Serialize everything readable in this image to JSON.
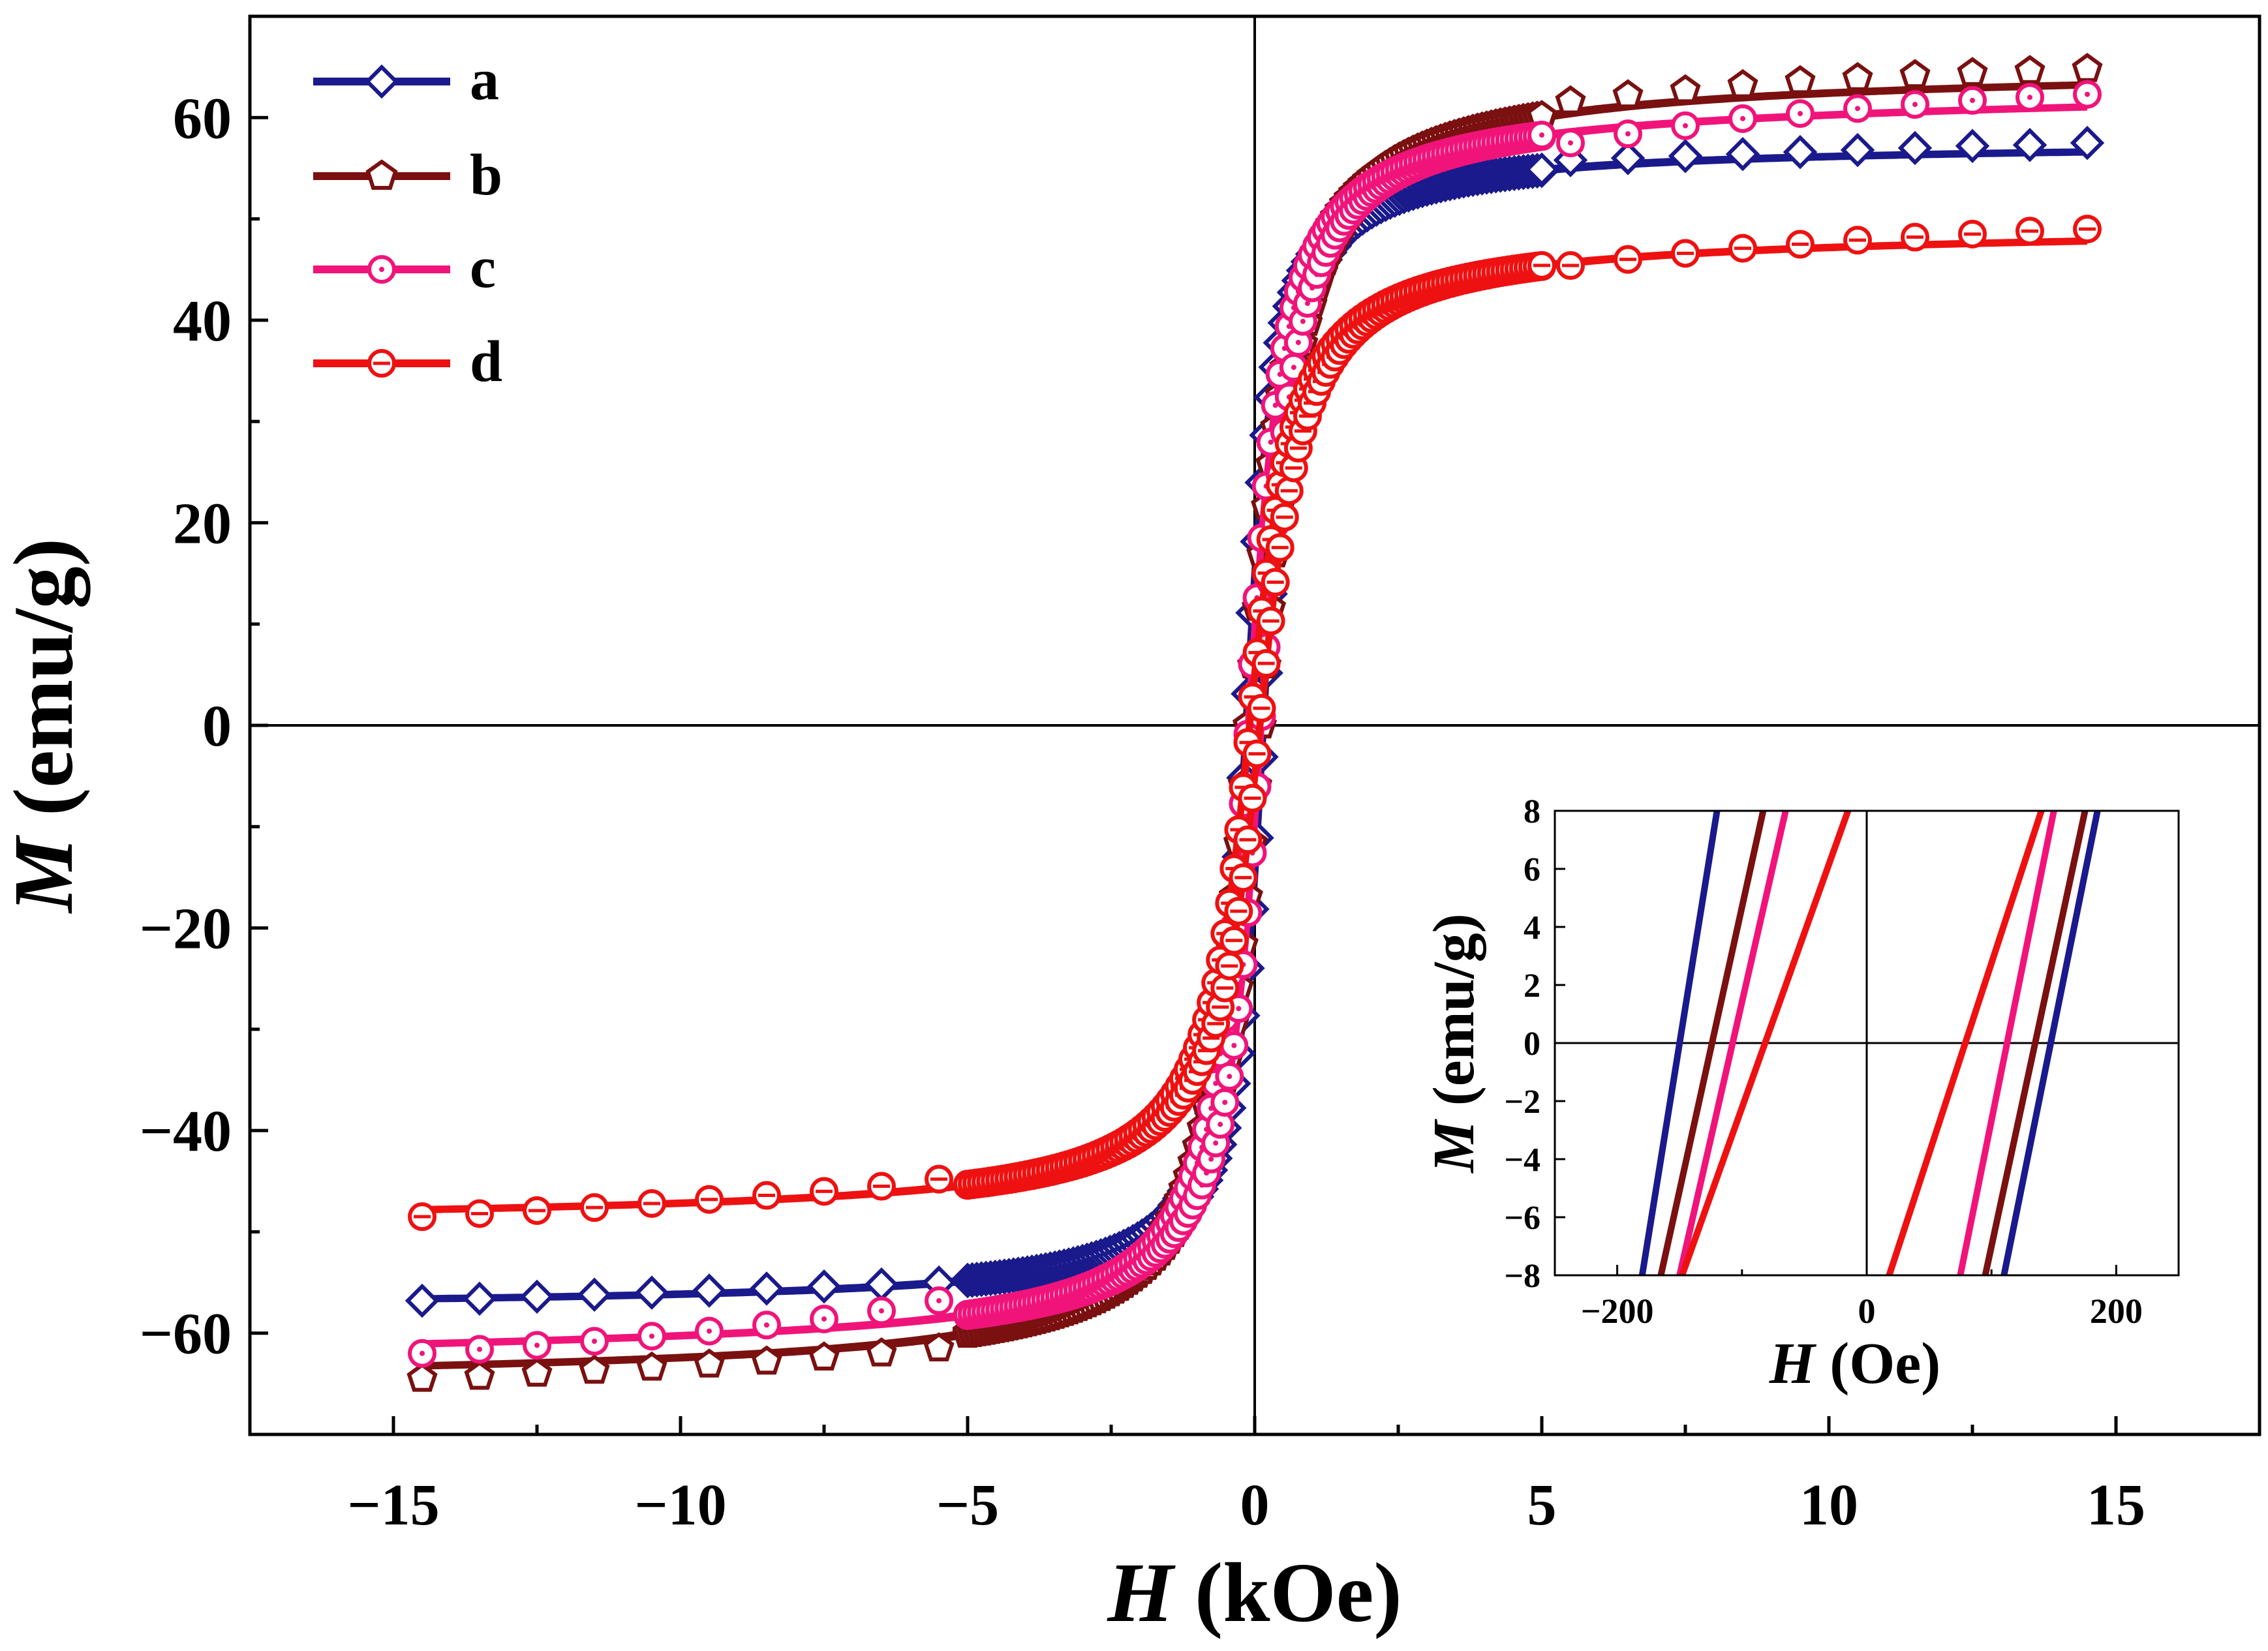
{
  "chart_data": [
    {
      "type": "line",
      "subtype": "hysteresis-loop",
      "xlabel_symbol": "H",
      "xlabel_unit": " (kOe)",
      "ylabel_symbol": "M",
      "ylabel_unit": " (emu/g)",
      "xlim": [
        -17.5,
        17.5
      ],
      "ylim": [
        -70,
        70
      ],
      "xticks": [
        -15,
        -10,
        -5,
        0,
        5,
        10,
        15
      ],
      "xtick_labels": [
        "−15",
        "−10",
        "−5",
        "0",
        "5",
        "10",
        "15"
      ],
      "yticks": [
        -60,
        -40,
        -20,
        0,
        20,
        40,
        60
      ],
      "ytick_labels": [
        "−60",
        "−40",
        "−20",
        "0",
        "20",
        "40",
        "60"
      ],
      "grid": false,
      "legend_position": "top-left",
      "zero_lines": true,
      "series": [
        {
          "name": "a",
          "color": "#1a1a8c",
          "marker": "diamond",
          "Ms": 57.5,
          "Hc_kOe": 0.15,
          "H_half_kOe": 0.35,
          "slope": 0.2,
          "x": [
            -14.5,
            -13.5,
            -12.5,
            -11.5,
            -10.5,
            -9.5,
            -8.5,
            -7.5,
            -6.5,
            -5.5,
            -5,
            -4,
            -3,
            -2,
            -1,
            -0.5,
            0,
            0.5,
            1,
            2,
            3,
            4,
            5,
            5.5,
            6.5,
            7.5,
            8.5,
            9.5,
            10.5,
            11.5,
            12.5,
            13.5,
            14.5
          ],
          "y": [
            -56.8,
            -56.6,
            -56.4,
            -56.2,
            -56.0,
            -55.8,
            -55.6,
            -55.4,
            -55.2,
            -55.0,
            -54.8,
            -53.8,
            -52.0,
            -48.5,
            -40.5,
            -28.0,
            4.0,
            31.0,
            43.0,
            50.5,
            53.5,
            54.6,
            55.2,
            55.8,
            56.0,
            56.2,
            56.4,
            56.6,
            56.8,
            57.0,
            57.2,
            57.3,
            57.5
          ]
        },
        {
          "name": "b",
          "color": "#7a1010",
          "marker": "pentagon",
          "Ms": 64.8,
          "Hc_kOe": 0.12,
          "H_half_kOe": 0.55,
          "slope": 0.35,
          "x": [
            -14.5,
            -13.5,
            -12.5,
            -11.5,
            -10.5,
            -9.5,
            -8.5,
            -7.5,
            -6.5,
            -5.5,
            -5,
            -4,
            -3,
            -2,
            -1,
            -0.5,
            0,
            0.5,
            1,
            2,
            3,
            4,
            5,
            5.5,
            6.5,
            7.5,
            8.5,
            9.5,
            10.5,
            11.5,
            12.5,
            13.5,
            14.5
          ],
          "y": [
            -64.5,
            -64.3,
            -64.0,
            -63.7,
            -63.4,
            -63.1,
            -62.8,
            -62.4,
            -62.0,
            -61.5,
            -61.0,
            -59.5,
            -57.5,
            -53.5,
            -45.0,
            -33.0,
            3.0,
            37.0,
            48.0,
            55.5,
            58.8,
            60.3,
            61.0,
            61.6,
            62.2,
            62.7,
            63.2,
            63.6,
            63.9,
            64.2,
            64.4,
            64.6,
            64.8
          ]
        },
        {
          "name": "c",
          "color": "#f0147a",
          "marker": "circle-dot",
          "Ms": 62.3,
          "Hc_kOe": 0.11,
          "H_half_kOe": 0.45,
          "slope": 0.8,
          "x": [
            -14.5,
            -13.5,
            -12.5,
            -11.5,
            -10.5,
            -9.5,
            -8.5,
            -7.5,
            -6.5,
            -5.5,
            -5,
            -4,
            -3,
            -2,
            -1,
            -0.5,
            0,
            0.5,
            1,
            2,
            3,
            4,
            5,
            5.5,
            6.5,
            7.5,
            8.5,
            9.5,
            10.5,
            11.5,
            12.5,
            13.5,
            14.5
          ],
          "y": [
            -62.0,
            -61.6,
            -61.2,
            -60.8,
            -60.3,
            -59.8,
            -59.2,
            -58.6,
            -57.8,
            -56.8,
            -56.0,
            -54.0,
            -51.5,
            -48.0,
            -40.5,
            -30.0,
            3.0,
            33.0,
            43.0,
            50.0,
            53.5,
            55.5,
            56.8,
            57.5,
            58.4,
            59.2,
            59.9,
            60.4,
            60.9,
            61.3,
            61.7,
            62.0,
            62.3
          ]
        },
        {
          "name": "d",
          "color": "#ee1111",
          "marker": "circle-dash",
          "Ms": 49.0,
          "Hc_kOe": 0.09,
          "H_half_kOe": 0.55,
          "slope": 0.35,
          "x": [
            -14.5,
            -13.5,
            -12.5,
            -11.5,
            -10.5,
            -9.5,
            -8.5,
            -7.5,
            -6.5,
            -5.5,
            -5,
            -4,
            -3,
            -2,
            -1,
            -0.5,
            0,
            0.5,
            1,
            2,
            3,
            4,
            5,
            5.5,
            6.5,
            7.5,
            8.5,
            9.5,
            10.5,
            11.5,
            12.5,
            13.5,
            14.5
          ],
          "y": [
            -48.5,
            -48.2,
            -47.9,
            -47.6,
            -47.2,
            -46.8,
            -46.4,
            -46.0,
            -45.5,
            -44.8,
            -44.2,
            -42.5,
            -40.5,
            -37.5,
            -31.0,
            -24.0,
            2.0,
            26.0,
            35.0,
            40.5,
            43.0,
            44.3,
            45.0,
            45.4,
            46.0,
            46.6,
            47.1,
            47.5,
            47.9,
            48.2,
            48.5,
            48.8,
            49.0
          ]
        }
      ]
    },
    {
      "type": "line",
      "subtype": "inset-zoom",
      "xlabel_symbol": "H",
      "xlabel_unit": " (Oe)",
      "ylabel_symbol": "M",
      "ylabel_unit": " (emu/g)",
      "xlim": [
        -250,
        250
      ],
      "ylim": [
        -8,
        8
      ],
      "xticks": [
        -200,
        0,
        200
      ],
      "xtick_labels": [
        "−200",
        "0",
        "200"
      ],
      "yticks": [
        -8,
        -6,
        -4,
        -2,
        0,
        2,
        4,
        6,
        8
      ],
      "ytick_labels": [
        "−8",
        "−6",
        "−4",
        "−2",
        "0",
        "2",
        "4",
        "6",
        "8"
      ],
      "grid": false,
      "zero_lines": true,
      "series": [
        {
          "name": "a",
          "color": "#1a1a8c",
          "descending_x": [
            -120,
            -180
          ],
          "ascending_x": [
            110,
            185
          ],
          "y": [
            8,
            -8
          ]
        },
        {
          "name": "b",
          "color": "#7a1010",
          "descending_x": [
            -83,
            -165
          ],
          "ascending_x": [
            95,
            175
          ],
          "y": [
            8,
            -8
          ]
        },
        {
          "name": "c",
          "color": "#f0147a",
          "descending_x": [
            -65,
            -150
          ],
          "ascending_x": [
            75,
            150
          ],
          "y": [
            8,
            -8
          ]
        },
        {
          "name": "d",
          "color": "#ee1111",
          "descending_x": [
            -15,
            -148
          ],
          "ascending_x": [
            18,
            140
          ],
          "y": [
            8,
            -8
          ]
        }
      ]
    }
  ]
}
